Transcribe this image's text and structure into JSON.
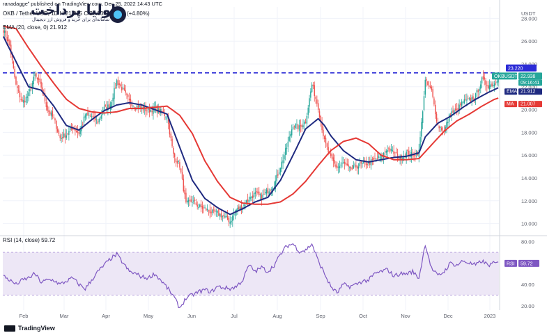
{
  "header": {
    "published": "ranadagge published on TradingView.com, Dec 25, 2022 14:43 UTC",
    "symbol_line": "OKB / Tether USD, 1D  H 21.815  C 22.938  +1.051 (+4.80%)",
    "ema_label": "EMA (20, close, 0)",
    "ema_value": "21.912",
    "rsi_label": "RSI (14, close)",
    "rsi_value": "59.72",
    "currency": "USDT"
  },
  "watermark": {
    "title": "اولیا پرداخت",
    "subtitle": "سامانه‌ای برای خرید و فروش ارز دیجیتال"
  },
  "footer": {
    "brand": "TradingView"
  },
  "colors": {
    "up": "#26a69a",
    "down": "#ef5350",
    "ema20": "#1f2a80",
    "ma50": "#e53935",
    "resistance": "#2b2bd6",
    "rsi": "#7e57c2",
    "rsi_band": "#ede7f6",
    "price_tag": "#26a69a"
  },
  "chart_data": [
    {
      "type": "candlestick",
      "symbol": "OKBUSDT",
      "timeframe": "1D",
      "x_tick_labels": [
        "Feb",
        "Mar",
        "Apr",
        "May",
        "Jun",
        "Jul",
        "Aug",
        "Sep",
        "Oct",
        "Nov",
        "Dec",
        "2023"
      ],
      "y_ticks": [
        10.0,
        12.0,
        14.0,
        16.0,
        18.0,
        20.0,
        22.0,
        24.0,
        26.0,
        28.0
      ],
      "y_tick_labels": [
        "10.000",
        "12.000",
        "14.000",
        "16.000",
        "18.000",
        "20.000",
        "22.000",
        "24.000",
        "26.000",
        "28.000"
      ],
      "ylim": [
        9.0,
        29.0
      ],
      "grid": true,
      "resistance": {
        "value": 23.22,
        "label": "23.220"
      },
      "last_price": {
        "value": 22.938,
        "label": "22.938",
        "symbol": "OKBUSDT",
        "countdown": "09:16:41"
      },
      "ema_tag": {
        "value": 21.912,
        "label": "21.912",
        "name": "EMA"
      },
      "ma_tag": {
        "value": 21.007,
        "label": "21.007",
        "name": "MA"
      },
      "anchors": {
        "close": [
          [
            0,
            27.0
          ],
          [
            5,
            25.6
          ],
          [
            10,
            22.1
          ],
          [
            15,
            20.6
          ],
          [
            20,
            21.3
          ],
          [
            25,
            23.0
          ],
          [
            30,
            22.0
          ],
          [
            35,
            20.0
          ],
          [
            40,
            19.2
          ],
          [
            45,
            17.5
          ],
          [
            50,
            17.8
          ],
          [
            55,
            18.4
          ],
          [
            60,
            17.9
          ],
          [
            65,
            19.5
          ],
          [
            70,
            19.4
          ],
          [
            75,
            18.9
          ],
          [
            80,
            20.1
          ],
          [
            85,
            20.4
          ],
          [
            90,
            22.5
          ],
          [
            95,
            21.7
          ],
          [
            100,
            20.7
          ],
          [
            105,
            20.3
          ],
          [
            110,
            20.1
          ],
          [
            115,
            19.9
          ],
          [
            120,
            20.1
          ],
          [
            125,
            19.8
          ],
          [
            130,
            19.4
          ],
          [
            135,
            16.0
          ],
          [
            140,
            15.1
          ],
          [
            145,
            11.7
          ],
          [
            150,
            12.0
          ],
          [
            155,
            11.5
          ],
          [
            160,
            11.3
          ],
          [
            165,
            11.0
          ],
          [
            170,
            10.9
          ],
          [
            175,
            10.6
          ],
          [
            180,
            10.2
          ],
          [
            185,
            11.2
          ],
          [
            190,
            11.5
          ],
          [
            195,
            12.2
          ],
          [
            200,
            12.6
          ],
          [
            205,
            12.3
          ],
          [
            210,
            12.9
          ],
          [
            215,
            13.4
          ],
          [
            220,
            15.0
          ],
          [
            225,
            16.7
          ],
          [
            230,
            18.7
          ],
          [
            235,
            18.4
          ],
          [
            240,
            19.0
          ],
          [
            245,
            22.2
          ],
          [
            250,
            20.2
          ],
          [
            255,
            17.2
          ],
          [
            260,
            15.7
          ],
          [
            265,
            14.9
          ],
          [
            270,
            15.3
          ],
          [
            275,
            14.7
          ],
          [
            280,
            15.0
          ],
          [
            285,
            15.2
          ],
          [
            290,
            15.3
          ],
          [
            295,
            15.6
          ],
          [
            300,
            15.8
          ],
          [
            305,
            16.6
          ],
          [
            310,
            16.2
          ],
          [
            315,
            15.7
          ],
          [
            320,
            16.2
          ],
          [
            325,
            16.0
          ],
          [
            330,
            16.3
          ],
          [
            335,
            22.5
          ],
          [
            340,
            21.6
          ],
          [
            345,
            18.6
          ],
          [
            350,
            18.1
          ],
          [
            355,
            19.7
          ],
          [
            360,
            19.9
          ],
          [
            365,
            20.7
          ],
          [
            370,
            20.8
          ],
          [
            375,
            21.2
          ],
          [
            380,
            22.6
          ],
          [
            385,
            22.1
          ],
          [
            390,
            22.3
          ],
          [
            393,
            22.938
          ]
        ],
        "ema20": [
          [
            0,
            26.4
          ],
          [
            10,
            24.2
          ],
          [
            20,
            22.0
          ],
          [
            30,
            21.7
          ],
          [
            40,
            20.3
          ],
          [
            50,
            18.6
          ],
          [
            60,
            18.2
          ],
          [
            70,
            19.1
          ],
          [
            80,
            19.9
          ],
          [
            90,
            20.4
          ],
          [
            100,
            20.6
          ],
          [
            110,
            20.4
          ],
          [
            120,
            20.0
          ],
          [
            130,
            19.6
          ],
          [
            140,
            16.7
          ],
          [
            150,
            13.8
          ],
          [
            160,
            12.2
          ],
          [
            170,
            11.4
          ],
          [
            180,
            10.8
          ],
          [
            190,
            11.3
          ],
          [
            200,
            11.9
          ],
          [
            210,
            12.3
          ],
          [
            220,
            13.8
          ],
          [
            230,
            16.0
          ],
          [
            240,
            18.3
          ],
          [
            250,
            19.2
          ],
          [
            255,
            18.6
          ],
          [
            260,
            17.7
          ],
          [
            270,
            16.4
          ],
          [
            280,
            15.6
          ],
          [
            290,
            15.4
          ],
          [
            300,
            15.6
          ],
          [
            310,
            15.8
          ],
          [
            320,
            15.9
          ],
          [
            330,
            16.2
          ],
          [
            335,
            17.6
          ],
          [
            345,
            18.8
          ],
          [
            355,
            19.4
          ],
          [
            365,
            20.2
          ],
          [
            375,
            20.9
          ],
          [
            385,
            21.5
          ],
          [
            393,
            21.912
          ]
        ],
        "ma50": [
          [
            0,
            27.3
          ],
          [
            10,
            27.1
          ],
          [
            20,
            25.4
          ],
          [
            30,
            23.8
          ],
          [
            40,
            22.3
          ],
          [
            50,
            20.9
          ],
          [
            60,
            20.1
          ],
          [
            70,
            19.8
          ],
          [
            80,
            19.7
          ],
          [
            90,
            19.8
          ],
          [
            100,
            20.1
          ],
          [
            110,
            20.1
          ],
          [
            120,
            20.2
          ],
          [
            130,
            20.3
          ],
          [
            140,
            19.5
          ],
          [
            150,
            17.9
          ],
          [
            160,
            15.5
          ],
          [
            170,
            13.7
          ],
          [
            180,
            12.3
          ],
          [
            190,
            11.8
          ],
          [
            200,
            11.7
          ],
          [
            210,
            11.7
          ],
          [
            220,
            11.9
          ],
          [
            230,
            12.6
          ],
          [
            240,
            13.7
          ],
          [
            250,
            15.1
          ],
          [
            260,
            16.4
          ],
          [
            270,
            17.2
          ],
          [
            280,
            17.5
          ],
          [
            290,
            17.0
          ],
          [
            300,
            16.0
          ],
          [
            310,
            15.6
          ],
          [
            320,
            15.6
          ],
          [
            330,
            15.7
          ],
          [
            340,
            16.9
          ],
          [
            350,
            18.1
          ],
          [
            360,
            19.0
          ],
          [
            370,
            19.6
          ],
          [
            380,
            20.3
          ],
          [
            390,
            20.9
          ],
          [
            393,
            21.007
          ]
        ]
      }
    },
    {
      "type": "line",
      "name": "RSI (14, close)",
      "y_ticks": [
        20.0,
        40.0,
        80.0
      ],
      "y_tick_labels": [
        "20.00",
        "40.00",
        "80.00"
      ],
      "ylim": [
        16.0,
        85.0
      ],
      "bands": [
        30.0,
        70.0
      ],
      "last": {
        "value": 59.72,
        "label": "59.72",
        "name": "RSI"
      },
      "anchors": [
        [
          0,
          48
        ],
        [
          5,
          44
        ],
        [
          10,
          40
        ],
        [
          15,
          44
        ],
        [
          20,
          46
        ],
        [
          25,
          50
        ],
        [
          30,
          42
        ],
        [
          35,
          44
        ],
        [
          40,
          44
        ],
        [
          45,
          40
        ],
        [
          50,
          43
        ],
        [
          55,
          46
        ],
        [
          60,
          40
        ],
        [
          65,
          36
        ],
        [
          70,
          44
        ],
        [
          75,
          52
        ],
        [
          80,
          58
        ],
        [
          85,
          64
        ],
        [
          90,
          68
        ],
        [
          95,
          60
        ],
        [
          100,
          52
        ],
        [
          105,
          50
        ],
        [
          110,
          47
        ],
        [
          115,
          46
        ],
        [
          120,
          50
        ],
        [
          125,
          44
        ],
        [
          130,
          37
        ],
        [
          135,
          29
        ],
        [
          140,
          18
        ],
        [
          145,
          27
        ],
        [
          150,
          30
        ],
        [
          155,
          33
        ],
        [
          160,
          35
        ],
        [
          165,
          33
        ],
        [
          170,
          38
        ],
        [
          175,
          37
        ],
        [
          180,
          36
        ],
        [
          185,
          38
        ],
        [
          190,
          44
        ],
        [
          195,
          58
        ],
        [
          200,
          52
        ],
        [
          205,
          56
        ],
        [
          210,
          52
        ],
        [
          215,
          58
        ],
        [
          220,
          68
        ],
        [
          225,
          76
        ],
        [
          230,
          78
        ],
        [
          235,
          71
        ],
        [
          240,
          72
        ],
        [
          245,
          78
        ],
        [
          250,
          62
        ],
        [
          255,
          50
        ],
        [
          260,
          38
        ],
        [
          265,
          32
        ],
        [
          270,
          40
        ],
        [
          275,
          38
        ],
        [
          280,
          40
        ],
        [
          285,
          43
        ],
        [
          290,
          44
        ],
        [
          295,
          50
        ],
        [
          300,
          52
        ],
        [
          305,
          54
        ],
        [
          310,
          48
        ],
        [
          315,
          50
        ],
        [
          320,
          50
        ],
        [
          325,
          52
        ],
        [
          330,
          46
        ],
        [
          335,
          78
        ],
        [
          340,
          55
        ],
        [
          345,
          48
        ],
        [
          350,
          52
        ],
        [
          355,
          60
        ],
        [
          360,
          58
        ],
        [
          365,
          62
        ],
        [
          370,
          60
        ],
        [
          375,
          58
        ],
        [
          380,
          62
        ],
        [
          385,
          58
        ],
        [
          390,
          60
        ],
        [
          393,
          59.72
        ]
      ]
    }
  ]
}
